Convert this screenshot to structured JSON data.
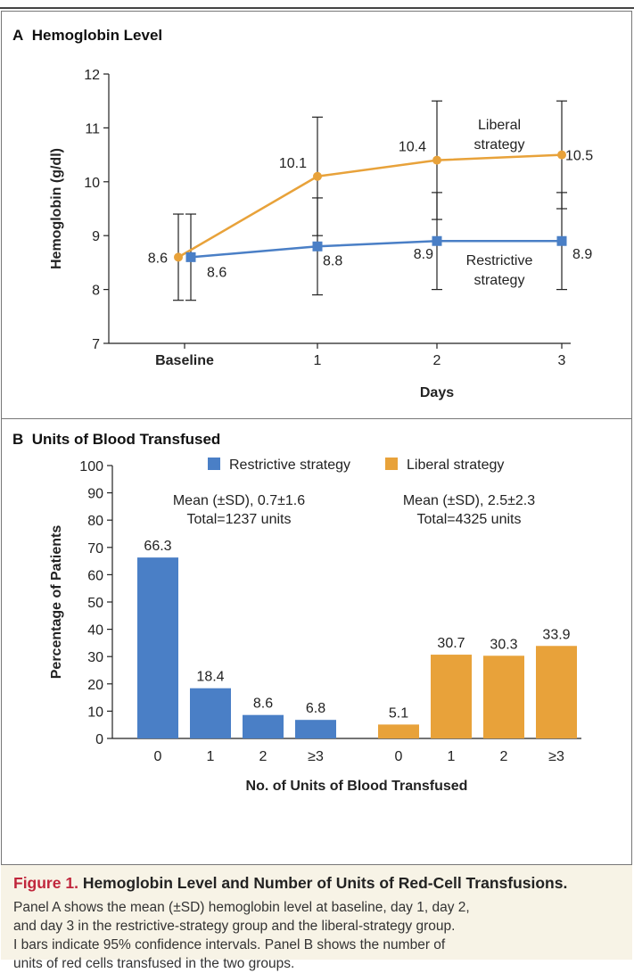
{
  "chart_data": [
    {
      "type": "line",
      "panel": "A",
      "title": "Hemoglobin Level",
      "xlabel": "Days",
      "ylabel": "Hemoglobin (g/dl)",
      "categories": [
        "Baseline",
        "1",
        "2",
        "3"
      ],
      "ylim": [
        7,
        12
      ],
      "yticks": [
        7,
        8,
        9,
        10,
        11,
        12
      ],
      "grid": false,
      "series": [
        {
          "name": "Liberal strategy",
          "color": "#e8a23a",
          "marker": "circle",
          "values": [
            8.6,
            10.1,
            10.4,
            10.5
          ],
          "labels": [
            "8.6",
            "10.1",
            "10.4",
            "10.5"
          ],
          "error_low": [
            7.8,
            9.0,
            9.3,
            9.5
          ],
          "error_high": [
            9.4,
            11.2,
            11.5,
            11.5
          ]
        },
        {
          "name": "Restrictive strategy",
          "color": "#4a7fc6",
          "marker": "square",
          "values": [
            8.6,
            8.8,
            8.9,
            8.9
          ],
          "labels": [
            "8.6",
            "8.8",
            "8.9",
            "8.9"
          ],
          "error_low": [
            7.8,
            7.9,
            8.0,
            8.0
          ],
          "error_high": [
            9.4,
            9.7,
            9.8,
            9.8
          ]
        }
      ],
      "annotations": [
        {
          "series": "Liberal strategy",
          "lines": [
            "Liberal",
            "strategy"
          ]
        },
        {
          "series": "Restrictive strategy",
          "lines": [
            "Restrictive",
            "strategy"
          ]
        }
      ]
    },
    {
      "type": "bar",
      "panel": "B",
      "title": "Units of Blood Transfused",
      "xlabel": "No. of Units of Blood Transfused",
      "ylabel": "Percentage of Patients",
      "ylim": [
        0,
        100
      ],
      "yticks": [
        0,
        10,
        20,
        30,
        40,
        50,
        60,
        70,
        80,
        90,
        100
      ],
      "grid": false,
      "legend": {
        "placement": "top"
      },
      "groups": [
        {
          "name": "Restrictive strategy",
          "color": "#4a7fc6",
          "categories": [
            "0",
            "1",
            "2",
            "≥3"
          ],
          "values": [
            66.3,
            18.4,
            8.6,
            6.8
          ],
          "labels": [
            "66.3",
            "18.4",
            "8.6",
            "6.8"
          ],
          "stats_lines": [
            "Mean (±SD), 0.7±1.6",
            "Total=1237 units"
          ]
        },
        {
          "name": "Liberal strategy",
          "color": "#e8a23a",
          "categories": [
            "0",
            "1",
            "2",
            "≥3"
          ],
          "values": [
            5.1,
            30.7,
            30.3,
            33.9
          ],
          "labels": [
            "5.1",
            "30.7",
            "30.3",
            "33.9"
          ],
          "stats_lines": [
            "Mean (±SD), 2.5±2.3",
            "Total=4325 units"
          ]
        }
      ]
    }
  ],
  "panels": {
    "a_letter": "A",
    "a_title": "Hemoglobin Level",
    "b_letter": "B",
    "b_title": "Units of Blood Transfused"
  },
  "caption": {
    "figure_label": "Figure 1.",
    "title": "Hemoglobin Level and Number of Units of Red-Cell Transfusions.",
    "lines": [
      "Panel A shows the mean (±SD) hemoglobin level at baseline, day 1, day 2,",
      "and day 3 in the restrictive-strategy group and the liberal-strategy group.",
      "I bars indicate 95% confidence intervals. Panel B shows the number of",
      "units of red cells transfused in the two groups."
    ]
  },
  "colors": {
    "liberal": "#e8a23a",
    "restrictive": "#4a7fc6",
    "caption_bg": "#f7f3e6",
    "figure_label": "#c0263c"
  }
}
